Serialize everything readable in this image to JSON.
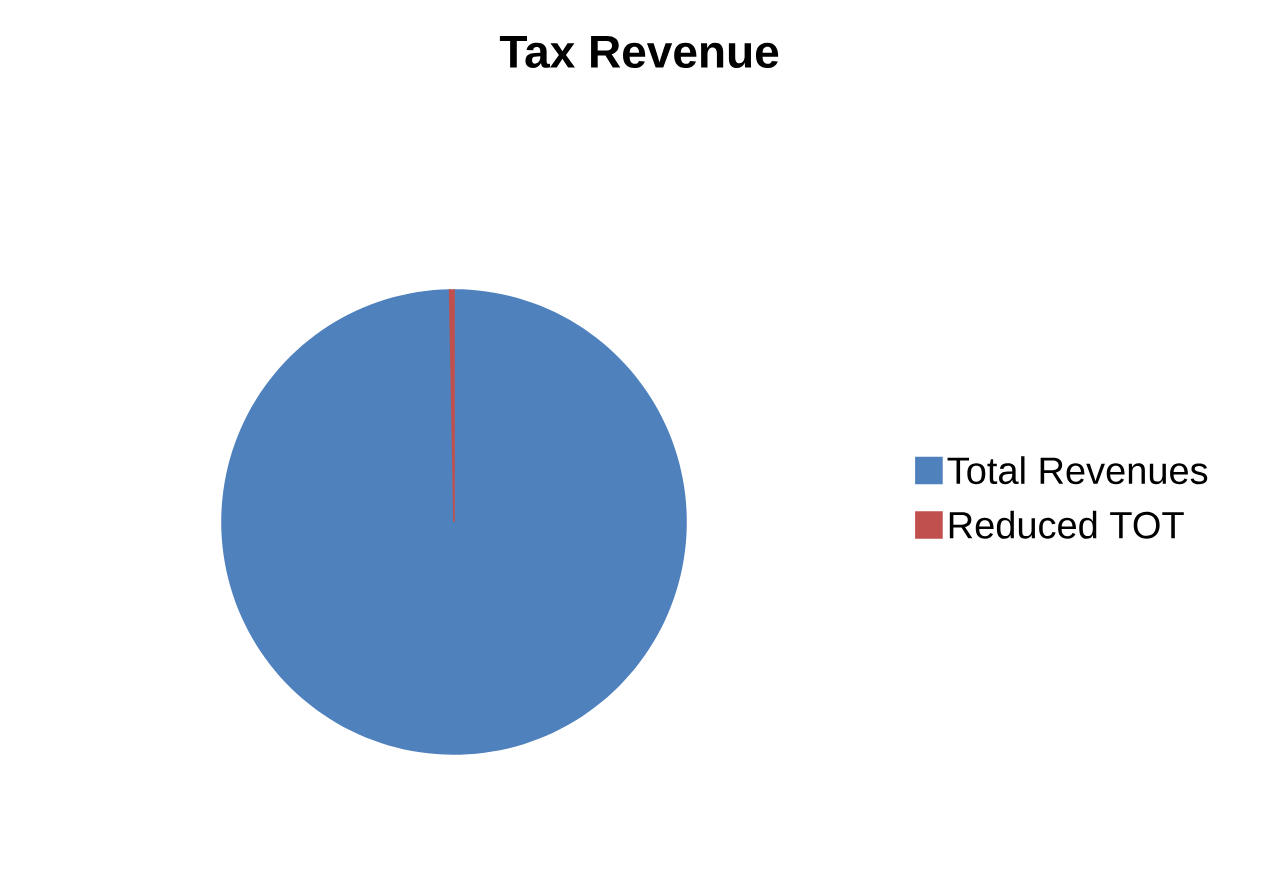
{
  "chart_data": {
    "type": "pie",
    "title": "Tax Revenue",
    "categories": [
      "Total Revenues",
      "Reduced TOT"
    ],
    "values": [
      99.7,
      0.3
    ],
    "colors": [
      "#4f81bd",
      "#c0504d"
    ],
    "legend": "right"
  }
}
